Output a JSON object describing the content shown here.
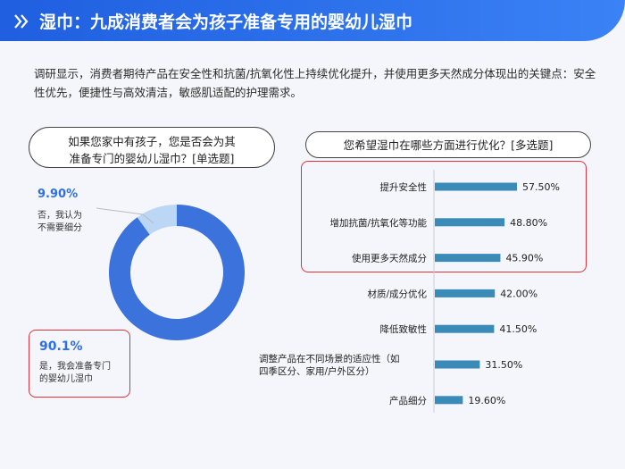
{
  "header": {
    "title": "湿巾：九成消费者会为孩子准备专用的婴幼儿湿巾"
  },
  "intro": "调研显示，消费者期待产品在安全性和抗菌/抗氧化性上持续优化提升，并使用更多天然成分体现出的关键点：安全性优先，便捷性与高效清洁，敏感肌适配的护理需求。",
  "left_question": {
    "line1": "如果您家中有孩子，您是否会为其",
    "line2": "准备专门的婴幼儿湿巾？[单选题]"
  },
  "right_question": "您希望湿巾在哪些方面进行优化？[多选题]",
  "colors": {
    "header": "#2f6fe8",
    "donut_main": "#3b72db",
    "donut_small": "#bcd6f6",
    "bar": "#3b8bb8",
    "highlight": "#e0313a"
  },
  "chart_data": [
    {
      "type": "pie",
      "variant": "donut",
      "slices": [
        {
          "label_line1": "是，我会准备专门",
          "label_line2": "的婴幼儿湿巾",
          "value_label": "90.1%",
          "value": 90.1
        },
        {
          "label_line1": "否，我认为",
          "label_line2": "不需要细分",
          "value_label": "9.90%",
          "value": 9.9
        }
      ]
    },
    {
      "type": "bar",
      "orientation": "horizontal",
      "categories": [
        "提升安全性",
        "增加抗菌/抗氧化等功能",
        "使用更多天然成分",
        "材质/成分优化",
        "降低致敏性",
        "调整产品在不同场景的适应性（如四季区分、家用/户外区分）",
        "产品细分"
      ],
      "category_lines": [
        [
          "提升安全性"
        ],
        [
          "增加抗菌/抗氧化等功能"
        ],
        [
          "使用更多天然成分"
        ],
        [
          "材质/成分优化"
        ],
        [
          "降低致敏性"
        ],
        [
          "调整产品在不同场景的适应性（如",
          "四季区分、家用/户外区分）"
        ],
        [
          "产品细分"
        ]
      ],
      "values": [
        57.5,
        48.8,
        45.9,
        42.0,
        41.5,
        31.5,
        19.6
      ],
      "value_labels": [
        "57.50%",
        "48.80%",
        "45.90%",
        "42.00%",
        "41.50%",
        "31.50%",
        "19.60%"
      ],
      "highlighted_categories": [
        "提升安全性",
        "增加抗菌/抗氧化等功能",
        "使用更多天然成分"
      ]
    }
  ]
}
